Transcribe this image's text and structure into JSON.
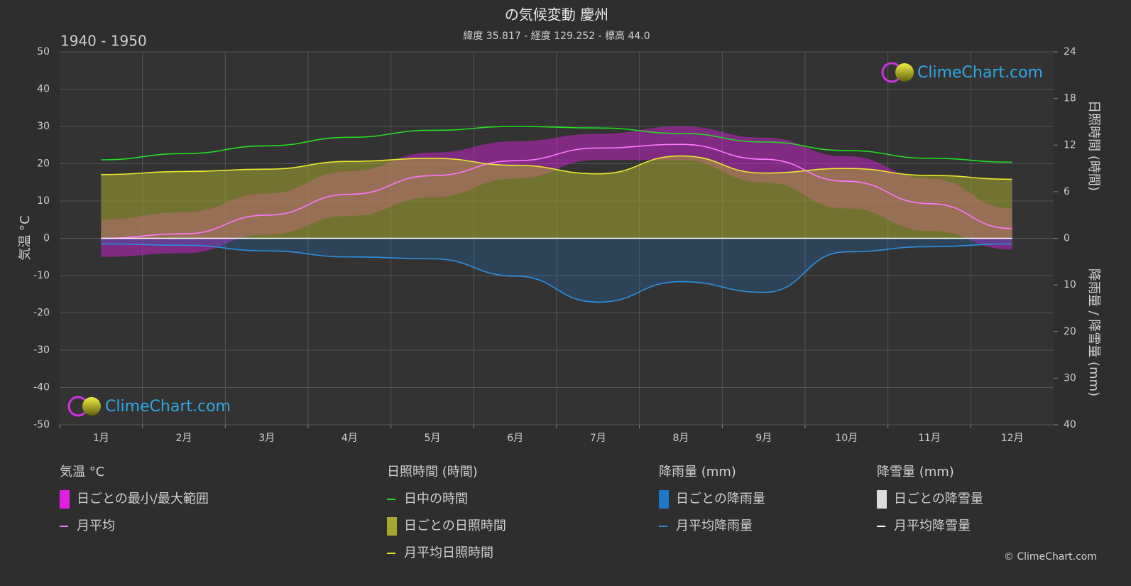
{
  "chart_data": {
    "type": "climate",
    "title": "の気候変動 慶州",
    "subtitle": "緯度 35.817 - 経度 129.252 - 標高 44.0",
    "period": "1940 - 1950",
    "ylabel": "気温 °C",
    "y2label": "日照時間 (時間)",
    "y3label": "降雨量 / 降雪量 (mm)",
    "categories": [
      "1月",
      "2月",
      "3月",
      "4月",
      "5月",
      "6月",
      "7月",
      "8月",
      "9月",
      "10月",
      "11月",
      "12月"
    ],
    "ylim": [
      -50,
      50
    ],
    "yticks": [
      -50,
      -40,
      -30,
      -20,
      -10,
      0,
      10,
      20,
      30,
      40,
      50
    ],
    "y2lim": [
      0,
      24
    ],
    "y2ticks": [
      0,
      6,
      12,
      18,
      24
    ],
    "y3lim": [
      0,
      40
    ],
    "y3ticks": [
      10,
      20,
      30,
      40
    ],
    "grid": true,
    "legend_groups": [
      "気温 °C",
      "日照時間 (時間)",
      "降雨量 (mm)",
      "降雪量 (mm)"
    ],
    "series": [
      {
        "name": "日ごとの最小/最大範囲",
        "color": "#e020e0",
        "axis": "y",
        "group": 0,
        "min": [
          -5,
          -4,
          1,
          6,
          11,
          16,
          21,
          21,
          15,
          8,
          2,
          -3
        ],
        "max": [
          5,
          7,
          12,
          18,
          23,
          26,
          28,
          30,
          27,
          22,
          16,
          8
        ]
      },
      {
        "name": "月平均",
        "color": "#ff77ff",
        "axis": "y",
        "group": 0,
        "values": [
          0.0,
          1.2,
          6.2,
          11.8,
          16.8,
          20.8,
          24.2,
          25.2,
          21.2,
          15.3,
          9.3,
          2.6
        ]
      },
      {
        "name": "日中の時間",
        "color": "#22dd22",
        "axis": "y2",
        "group": 1,
        "values": [
          10.1,
          10.9,
          11.9,
          13.0,
          13.9,
          14.4,
          14.2,
          13.5,
          12.4,
          11.3,
          10.3,
          9.8
        ]
      },
      {
        "name": "日ごとの日照時間",
        "color": "#a8a830",
        "axis": "y2",
        "group": 1
      },
      {
        "name": "月平均日照時間",
        "color": "#e8e830",
        "axis": "y2",
        "group": 1,
        "values": [
          8.2,
          8.6,
          8.9,
          9.9,
          10.3,
          9.4,
          8.3,
          10.6,
          8.4,
          9.0,
          8.1,
          7.6
        ]
      },
      {
        "name": "日ごとの降雨量",
        "color": "#1c78c8",
        "axis": "y3",
        "group": 2
      },
      {
        "name": "月平均降雨量",
        "color": "#2a90e0",
        "axis": "y3",
        "group": 2,
        "values": [
          1.2,
          1.5,
          2.7,
          4.0,
          4.4,
          8.1,
          13.7,
          9.3,
          11.6,
          2.9,
          1.8,
          1.2
        ]
      },
      {
        "name": "日ごとの降雪量",
        "color": "#dddddd",
        "axis": "y3",
        "group": 3
      },
      {
        "name": "月平均降雪量",
        "color": "#ffffff",
        "axis": "y3",
        "group": 3,
        "values": [
          0,
          0,
          0,
          0,
          0,
          0,
          0,
          0,
          0,
          0,
          0,
          0
        ]
      }
    ],
    "watermark": "ClimeChart.com",
    "copyright": "© ClimeChart.com"
  }
}
